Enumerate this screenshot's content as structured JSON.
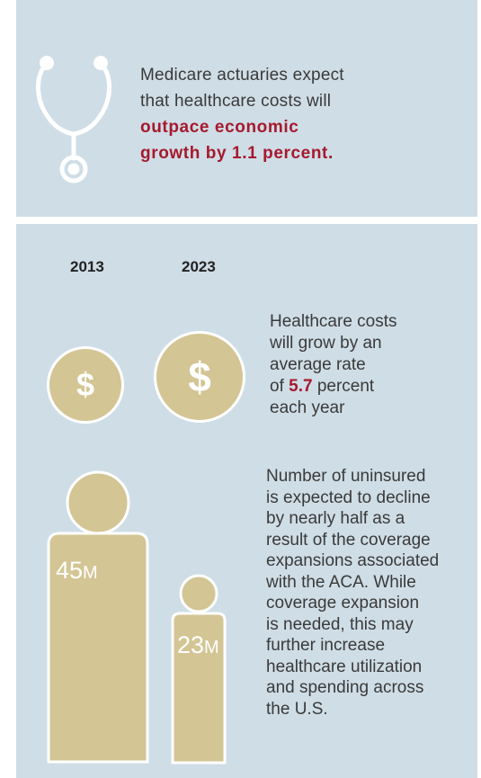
{
  "top_panel": {
    "line1": "Medicare actuaries expect",
    "line2": "that healthcare costs will",
    "highlight_line1": "outpace economic",
    "highlight_line2": "growth by 1.1 percent.",
    "icon": "stethoscope-icon"
  },
  "years": {
    "left": "2013",
    "right": "2023"
  },
  "coins": {
    "symbol": "$",
    "icon": "dollar-coin-icon"
  },
  "growth": {
    "line1": "Healthcare costs",
    "line2": "will grow by an",
    "line3": "average rate",
    "line4_prefix": "of ",
    "rate": "5.7",
    "line4_suffix": " percent",
    "line5": "each year"
  },
  "uninsured": {
    "lines": [
      "Number of uninsured",
      "is expected to decline",
      "by nearly half as a",
      "result of the coverage",
      "expansions associated",
      "with the ACA. While",
      "coverage expansion",
      "is needed, this may",
      "further increase",
      "healthcare utilization",
      "and spending across",
      "the U.S."
    ],
    "figure_2013": {
      "number": "45",
      "unit": "M"
    },
    "figure_2023": {
      "number": "23",
      "unit": "M"
    }
  },
  "colors": {
    "panel_bg": "#cfdde6",
    "accent_red": "#a6192e",
    "tan": "#d3c594",
    "text": "#3a3a3a"
  }
}
